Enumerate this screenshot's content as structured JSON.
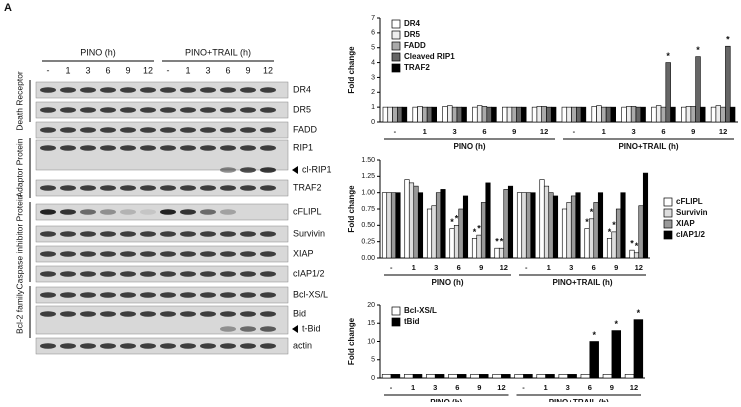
{
  "panel_label": "A",
  "blot": {
    "conditions": [
      "PINO (h)",
      "PINO+TRAIL (h)"
    ],
    "lanes": [
      "-",
      "1",
      "3",
      "6",
      "9",
      "12",
      "-",
      "1",
      "3",
      "6",
      "9",
      "12"
    ],
    "bands": [
      "DR4",
      "DR5",
      "FADD",
      "RIP1",
      "cl-RIP1",
      "TRAF2",
      "cFLIPL",
      "Survivin",
      "XIAP",
      "cIAP1/2",
      "Bcl-XS/L",
      "Bid",
      "t-Bid",
      "actin"
    ],
    "families": [
      "Death Receptor",
      "Adaptor Protein",
      "Caspase inhibitor Protein",
      "Bcl-2 family"
    ]
  },
  "chart_data": [
    {
      "type": "bar",
      "y_label": "Fold change",
      "legend": "upper left",
      "categories": [
        "-",
        "1",
        "3",
        "6",
        "9",
        "12",
        "-",
        "1",
        "3",
        "6",
        "9",
        "12"
      ],
      "groups": [
        "PINO (h)",
        "PINO+TRAIL (h)"
      ],
      "ylim": [
        0,
        7
      ],
      "yticks": [
        0,
        1,
        2,
        3,
        4,
        5,
        6,
        7
      ],
      "series": [
        {
          "name": "DR4",
          "color": "#ffffff",
          "values": [
            1,
            1,
            1.05,
            1,
            1,
            1,
            1,
            1.05,
            1,
            1,
            1,
            1
          ]
        },
        {
          "name": "DR5",
          "color": "#eeeeee",
          "values": [
            1,
            1.05,
            1.1,
            1.1,
            1,
            1.05,
            1,
            1.1,
            1.05,
            1.1,
            1.05,
            1.1
          ]
        },
        {
          "name": "FADD",
          "color": "#aaaaaa",
          "values": [
            1,
            1,
            1,
            1.05,
            1,
            1.05,
            1,
            1,
            1.05,
            1,
            1.05,
            1
          ]
        },
        {
          "name": "Cleaved RIP1",
          "color": "#666666",
          "values": [
            1,
            1,
            1,
            1,
            1,
            1,
            1,
            1,
            1,
            4.0,
            4.4,
            5.1
          ],
          "annotations": [
            null,
            null,
            null,
            null,
            null,
            null,
            null,
            null,
            null,
            "*",
            "*",
            "*"
          ]
        },
        {
          "name": "TRAF2",
          "color": "#000000",
          "values": [
            1,
            1,
            1,
            1,
            1,
            1,
            1,
            1,
            1,
            1,
            1,
            1
          ]
        }
      ]
    },
    {
      "type": "bar",
      "y_label": "Fold change",
      "legend": "right",
      "categories": [
        "-",
        "1",
        "3",
        "6",
        "9",
        "12",
        "-",
        "1",
        "3",
        "6",
        "9",
        "12"
      ],
      "groups": [
        "PINO (h)",
        "PINO+TRAIL (h)"
      ],
      "ylim": [
        0,
        1.5
      ],
      "yticks": [
        {
          "value": 0,
          "label": "0.00"
        },
        {
          "value": 0.25,
          "label": "0.25"
        },
        {
          "value": 0.5,
          "label": "0.50"
        },
        {
          "value": 0.75,
          "label": "0.75"
        },
        {
          "value": 1,
          "label": "1.00"
        },
        {
          "value": 1.25,
          "label": "1.25"
        },
        {
          "value": 1.5,
          "label": "1.50"
        }
      ],
      "series": [
        {
          "name": "cFLIPL",
          "color": "#ffffff",
          "values": [
            1,
            1.2,
            0.75,
            0.45,
            0.3,
            0.15,
            1,
            1.2,
            0.75,
            0.45,
            0.3,
            0.12
          ],
          "annotations": [
            null,
            null,
            null,
            "*",
            "*",
            "*",
            null,
            null,
            null,
            "*",
            "*",
            "*"
          ]
        },
        {
          "name": "Survivin",
          "color": "#dddddd",
          "values": [
            1,
            1.15,
            0.8,
            0.5,
            0.35,
            0.15,
            1,
            1.1,
            0.85,
            0.6,
            0.4,
            0.08
          ],
          "annotations": [
            null,
            null,
            null,
            "*",
            "*",
            "*",
            null,
            null,
            null,
            "*",
            "*",
            "*"
          ]
        },
        {
          "name": "XIAP",
          "color": "#999999",
          "values": [
            1,
            1.1,
            1.0,
            0.75,
            0.85,
            1.05,
            1,
            1.0,
            0.95,
            0.85,
            0.75,
            0.8
          ]
        },
        {
          "name": "cIAP1/2",
          "color": "#000000",
          "values": [
            1,
            1.0,
            1.05,
            0.95,
            1.15,
            1.1,
            1,
            0.95,
            1.0,
            1.0,
            1.0,
            1.3
          ]
        }
      ]
    },
    {
      "type": "bar",
      "y_label": "Fold change",
      "legend": "upper left",
      "categories": [
        "-",
        "1",
        "3",
        "6",
        "9",
        "12",
        "-",
        "1",
        "3",
        "6",
        "9",
        "12"
      ],
      "groups": [
        "PINO (h)",
        "PINO+TRAIL (h)"
      ],
      "ylim": [
        0,
        20
      ],
      "yticks": [
        0,
        5,
        10,
        15,
        20
      ],
      "series": [
        {
          "name": "Bcl-XS/L",
          "color": "#ffffff",
          "values": [
            1,
            1,
            1,
            1,
            1,
            1,
            1,
            1,
            1,
            1,
            1,
            1
          ]
        },
        {
          "name": "tBid",
          "color": "#000000",
          "values": [
            1,
            1,
            1,
            1,
            1,
            1,
            1,
            1,
            1,
            10,
            13,
            16
          ],
          "annotations": [
            null,
            null,
            null,
            null,
            null,
            null,
            null,
            null,
            null,
            "*",
            "*",
            "*"
          ]
        }
      ]
    }
  ]
}
